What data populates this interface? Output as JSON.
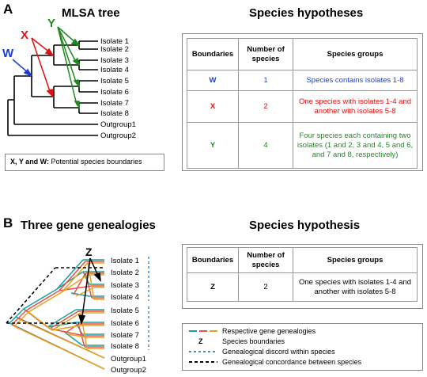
{
  "panel_a": {
    "letter": "A",
    "tree_title": "MLSA tree",
    "hyp_title": "Species hypotheses",
    "boundary_markers": [
      "W",
      "X",
      "Y"
    ],
    "leaves": [
      "Isolate 1",
      "Isolate 2",
      "Isolate 3",
      "Isolate 4",
      "Isolate 5",
      "Isolate 6",
      "Isolate 7",
      "Isolate 8",
      "Outgroup1",
      "Outgroup2"
    ],
    "note_bold": "X, Y and W:",
    "note_rest": " Potential species boundaries",
    "table": {
      "headers": [
        "Boundaries",
        "Number of species",
        "Species groups"
      ],
      "rows": [
        {
          "boundary": "W",
          "count": "1",
          "groups": "Species contains isolates 1-8"
        },
        {
          "boundary": "X",
          "count": "2",
          "groups": "One species with isolates 1-4 and another with isolates 5-8"
        },
        {
          "boundary": "Y",
          "count": "4",
          "groups": "Four species each containing two isolates (1 and 2, 3 and 4, 5 and 6, and 7 and 8, respectively)"
        }
      ]
    }
  },
  "panel_b": {
    "letter": "B",
    "tree_title": "Three gene genealogies",
    "hyp_title": "Species hypothesis",
    "marker": "Z",
    "leaves": [
      "Isolate 1",
      "Isolate 2",
      "Isolate 3",
      "Isolate 4",
      "Isolate 5",
      "Isolate 6",
      "Isolate 7",
      "Isolate 8",
      "Outgroup1",
      "Outgroup2"
    ],
    "table": {
      "headers": [
        "Boundaries",
        "Number of species",
        "Species groups"
      ],
      "rows": [
        {
          "boundary": "Z",
          "count": "2",
          "groups": "One species with isolates 1-4 and another with isolates 5-8"
        }
      ]
    },
    "legend": [
      {
        "key": "gene-lines",
        "text": "Respective gene genealogies"
      },
      {
        "key": "Z",
        "text": "Species boundaries"
      },
      {
        "key": "blue-dash",
        "text": "Genealogical discord within species"
      },
      {
        "key": "black-dash",
        "text": "Genealogical concordance between species"
      }
    ]
  },
  "colors": {
    "w": "#1a3fd6",
    "x": "#e01010",
    "y": "#1e8a1e",
    "gene_teal": "#17a2a0",
    "gene_red": "#e8504a",
    "gene_orange": "#e8a21c",
    "dash_blue": "#3a8fd8"
  }
}
